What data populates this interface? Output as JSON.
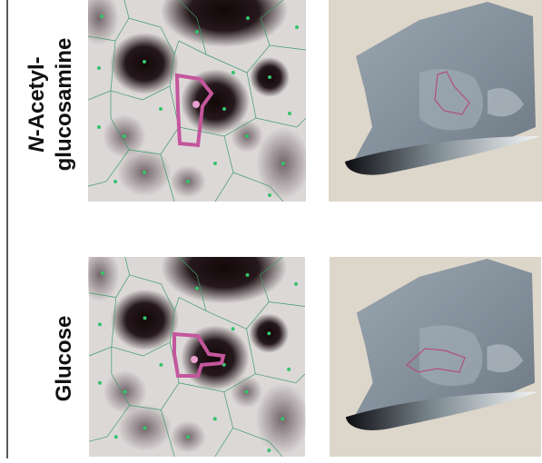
{
  "rows": [
    {
      "label": {
        "italic": "N",
        "line1": "-Acetyl-",
        "line2": "glucosamine"
      }
    },
    {
      "label": {
        "text": "Glucose"
      }
    }
  ]
}
